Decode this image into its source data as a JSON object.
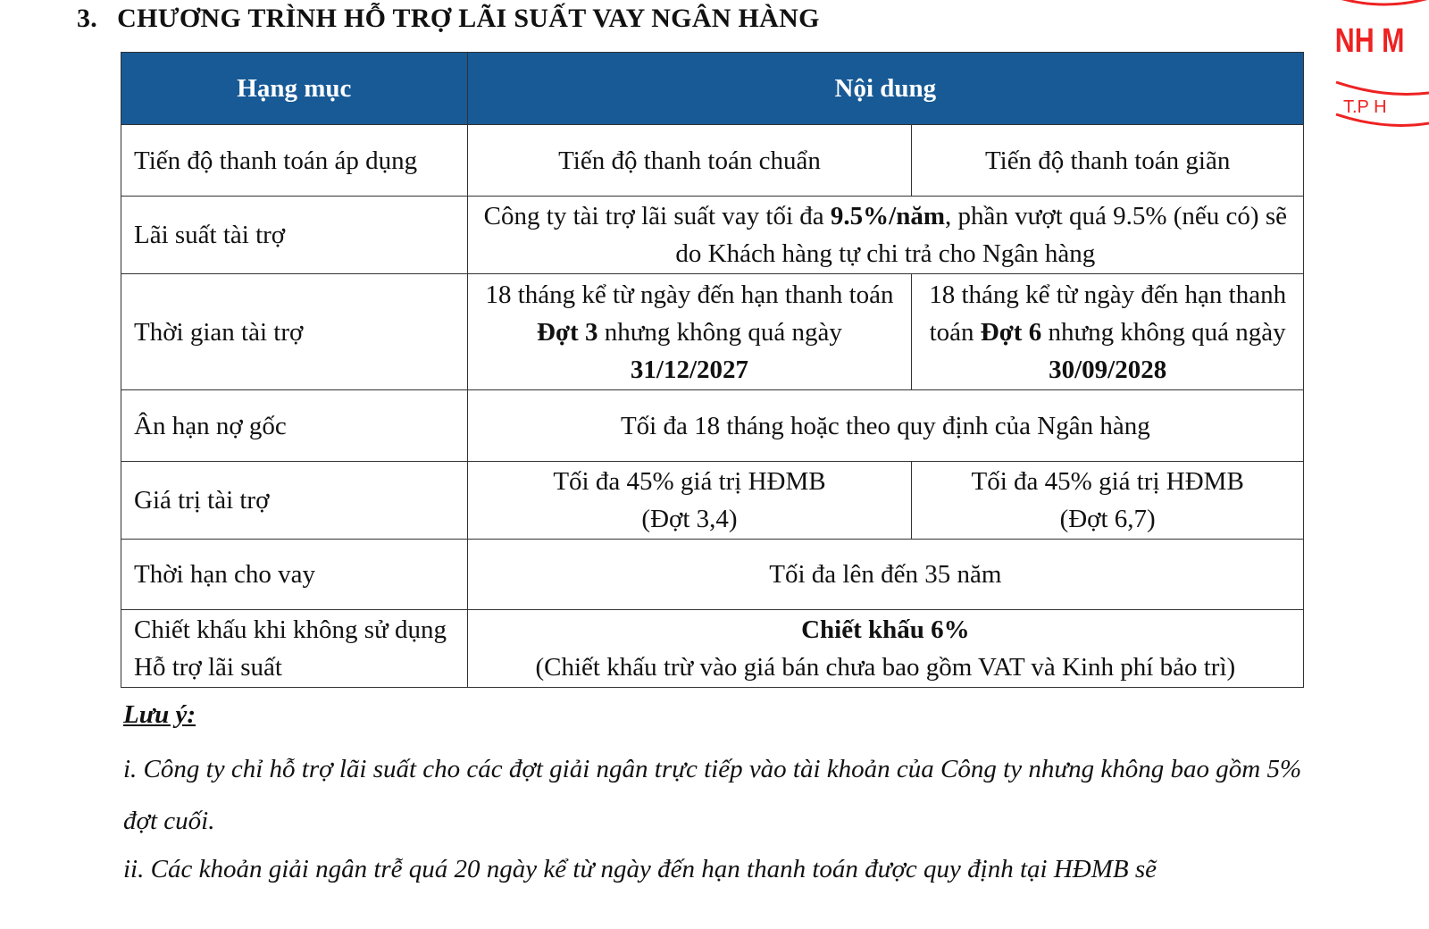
{
  "section": {
    "number": "3.",
    "title": "CHƯƠNG TRÌNH HỖ TRỢ LÃI SUẤT VAY NGÂN HÀNG"
  },
  "table": {
    "headers": [
      "Hạng mục",
      "Nội dung"
    ],
    "header_color": "#175a96",
    "rows": [
      {
        "label": "Tiến độ thanh toán áp dụng",
        "col1": "Tiến độ thanh toán chuẩn",
        "col2": "Tiến độ thanh toán giãn"
      },
      {
        "label": "Lãi suất tài trợ",
        "pre": "Công ty tài trợ lãi suất vay tối đa ",
        "bold": "9.5%/năm",
        "post": ", phần vượt quá 9.5% (nếu có) sẽ do Khách hàng tự chi trả cho Ngân hàng"
      },
      {
        "label": "Thời gian tài trợ",
        "col1": {
          "pre": "18 tháng kể từ ngày đến hạn thanh toán ",
          "bold1": "Đợt 3",
          "mid": " nhưng không quá ngày ",
          "bold2": "31/12/2027"
        },
        "col2": {
          "pre": "18 tháng kể từ ngày đến hạn thanh toán ",
          "bold1": "Đợt 6",
          "mid": " nhưng không quá ngày ",
          "bold2": "30/09/2028"
        }
      },
      {
        "label": "Ân hạn nợ gốc",
        "content": "Tối đa 18 tháng hoặc theo quy định của Ngân hàng"
      },
      {
        "label": "Giá trị tài trợ",
        "col1": "Tối đa 45% giá trị HĐMB",
        "col1b": "(Đợt 3,4)",
        "col2": "Tối đa 45% giá trị HĐMB",
        "col2b": "(Đợt 6,7)"
      },
      {
        "label": "Thời hạn cho vay",
        "content": "Tối đa lên đến 35 năm"
      },
      {
        "label": "Chiết khấu khi không sử dụng Hỗ trợ lãi suất",
        "bold": "Chiết khấu 6%",
        "content": "(Chiết khấu trừ vào giá bán chưa bao gồm VAT và Kinh phí bảo trì)"
      }
    ]
  },
  "notes": {
    "heading": "Lưu ý:",
    "items": [
      "i.    Công ty chỉ hỗ trợ lãi suất cho các đợt giải ngân trực tiếp vào tài khoản của Công ty nhưng không bao gồm 5% đợt cuối.",
      "ii.    Các khoản giải ngân trễ quá 20 ngày kể từ ngày đến hạn thanh toán được quy định tại HĐMB sẽ"
    ]
  },
  "stamp": {
    "line1": "NH M",
    "line2": "T.P H",
    "color": "#e22222"
  }
}
